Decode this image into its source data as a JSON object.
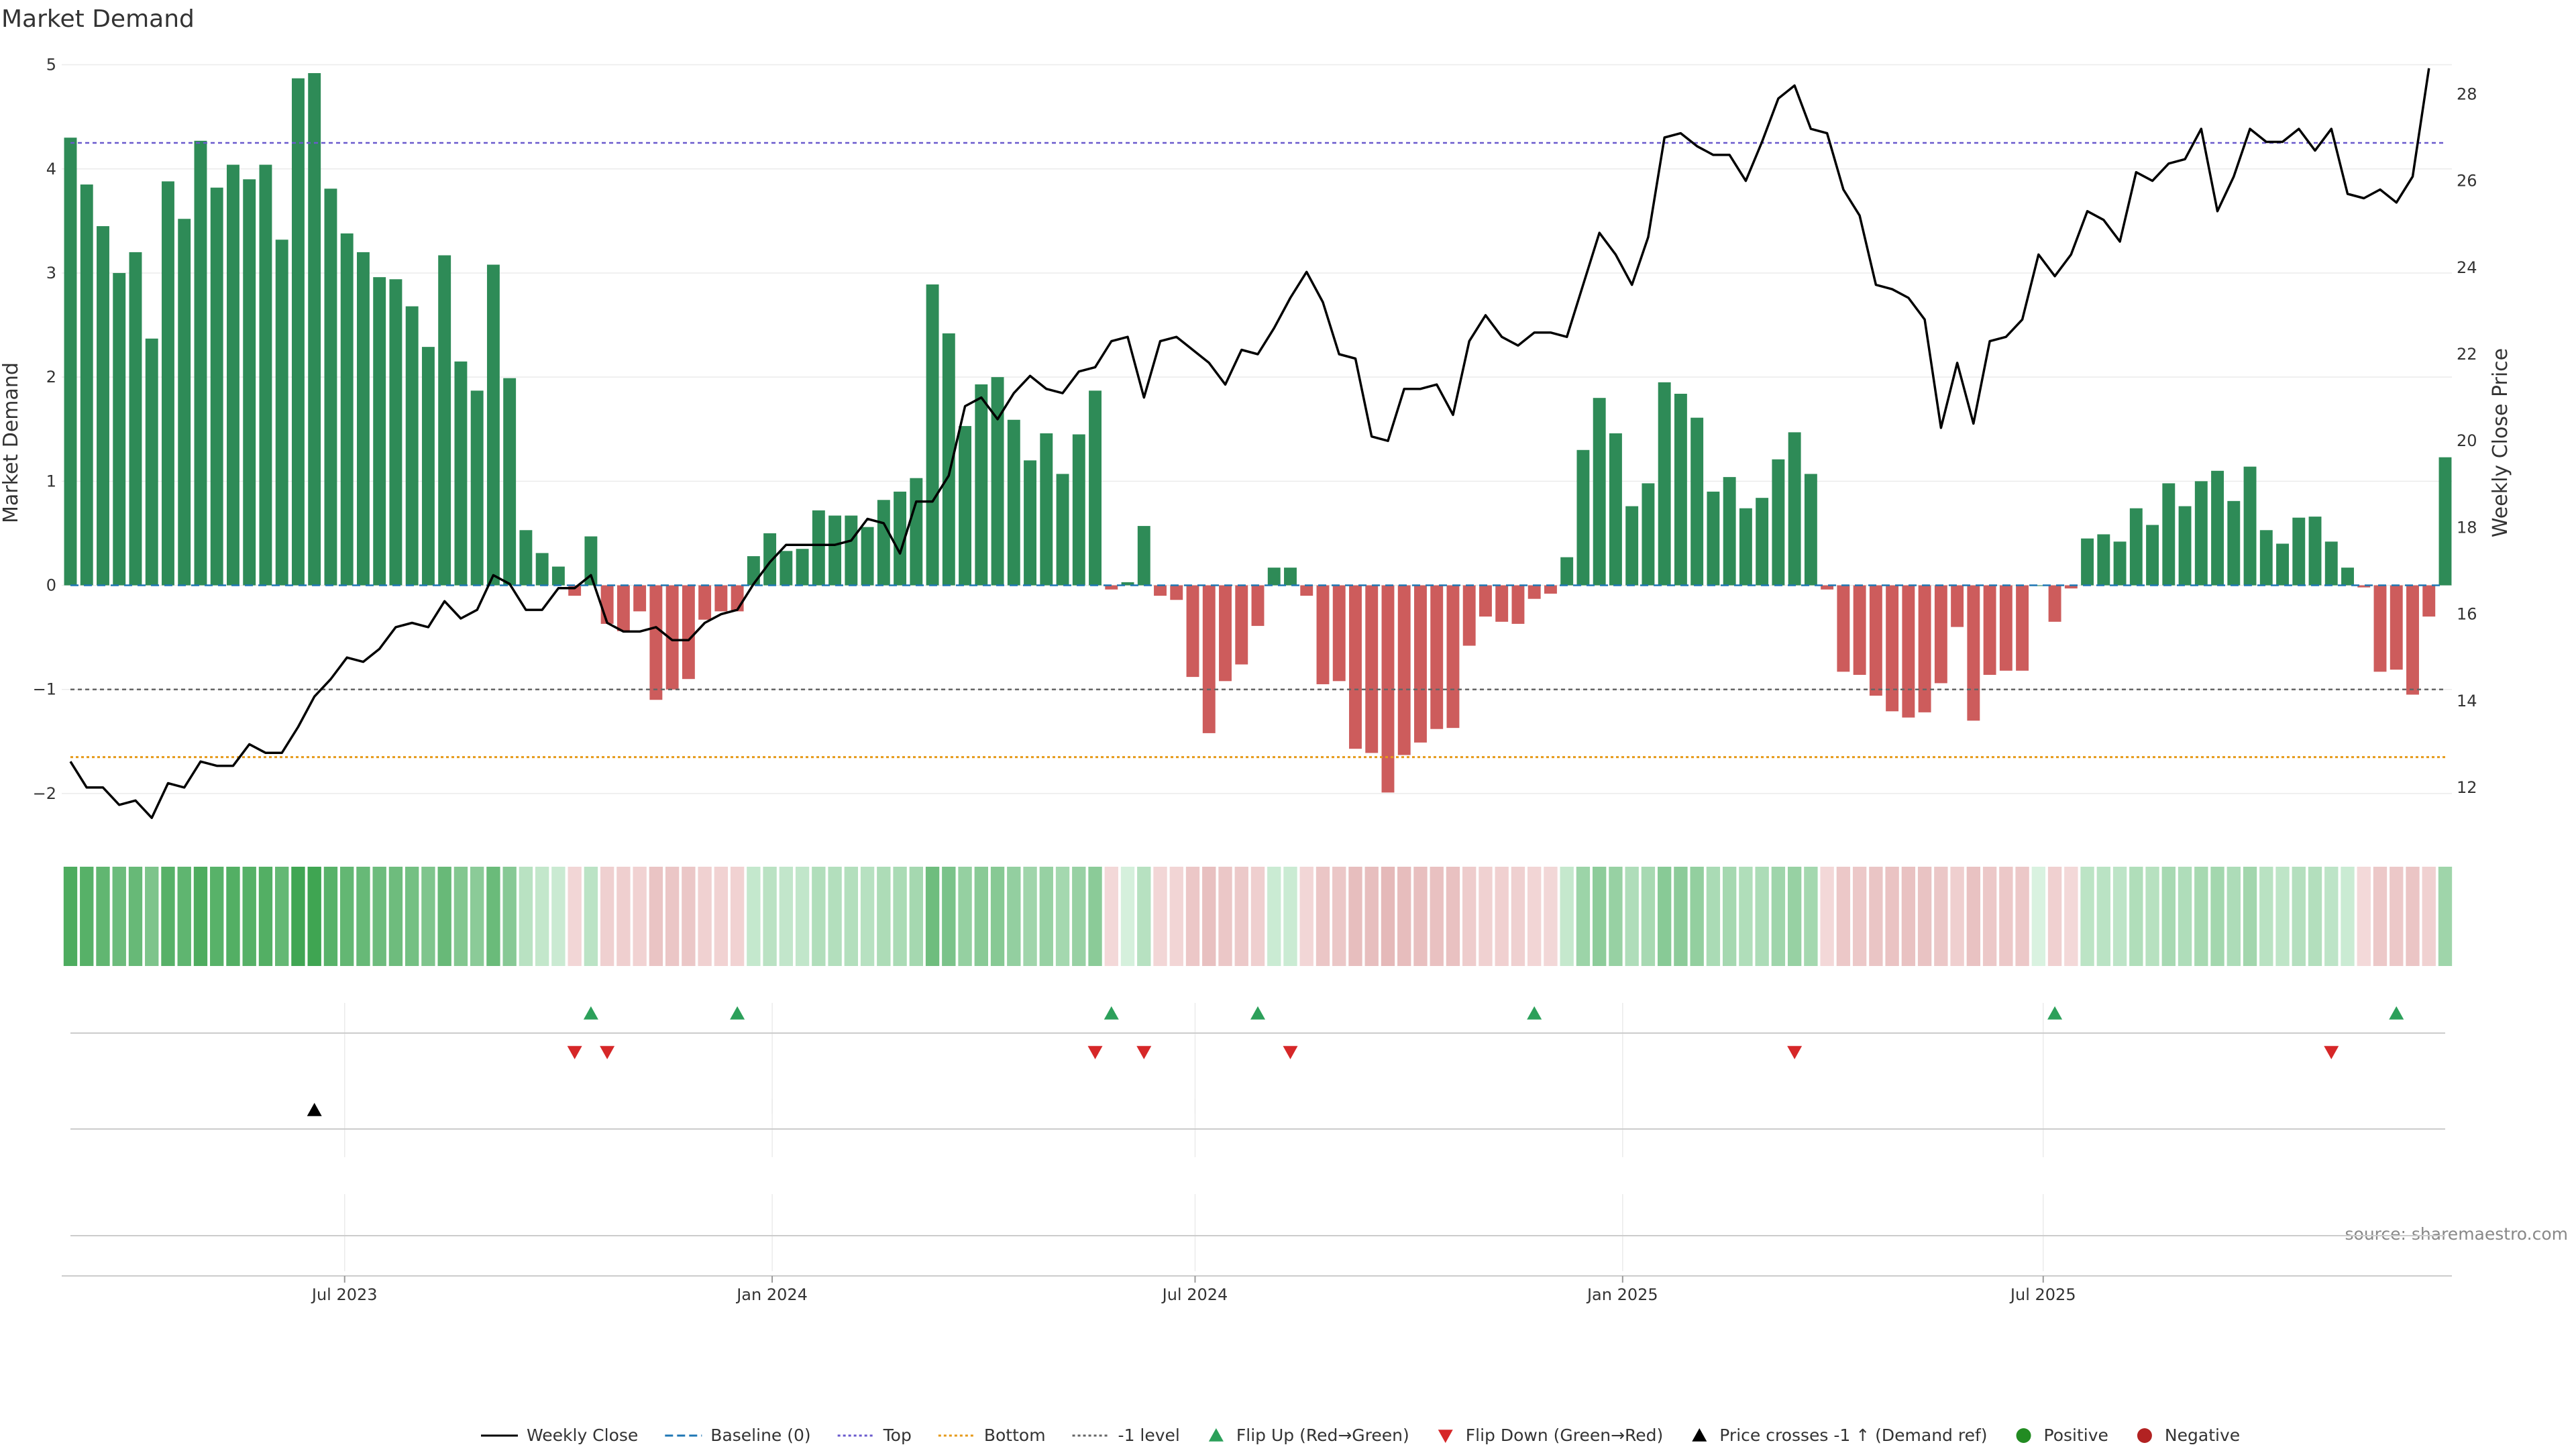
{
  "chart_data": {
    "type": "bar",
    "title": "Market Demand",
    "ylabel_left": "Market Demand",
    "ylabel_right": "Weekly Close Price",
    "source": "source: sharemaestro.com",
    "left_axis": {
      "ylim": [
        -2.4,
        5.3
      ],
      "ticks": [
        -2,
        -1,
        0,
        1,
        2,
        3,
        4,
        5
      ],
      "tick_labels": [
        "−2",
        "−1",
        "0",
        "1",
        "2",
        "3",
        "4",
        "5"
      ]
    },
    "right_axis": {
      "ylim": [
        10.9,
        29.4
      ],
      "ticks": [
        12,
        14,
        16,
        18,
        20,
        22,
        24,
        26,
        28
      ],
      "tick_labels": [
        "12",
        "14",
        "16",
        "18",
        "20",
        "22",
        "24",
        "26",
        "28"
      ]
    },
    "x_axis": {
      "start_date": "2023-03-05",
      "interval_days": 7,
      "ticks": [
        {
          "date": "2023-07-01",
          "label": "Jul 2023"
        },
        {
          "date": "2024-01-01",
          "label": "Jan 2024"
        },
        {
          "date": "2024-07-01",
          "label": "Jul 2024"
        },
        {
          "date": "2025-01-01",
          "label": "Jan 2025"
        },
        {
          "date": "2025-07-01",
          "label": "Jul 2025"
        }
      ]
    },
    "reference_lines": {
      "top": 4.25,
      "bottom": -1.65,
      "minus_one": -1,
      "baseline": 0
    },
    "colors": {
      "positive": "#2e8b57",
      "negative": "#cd5c5c",
      "price": "#000000",
      "top": "#6a5acd",
      "bottom": "#e69a1a",
      "minus_one": "#666666",
      "baseline": "#1f77b4",
      "flip_up": "#2ca05a",
      "flip_down": "#d62728"
    },
    "demand": [
      4.3,
      3.85,
      3.45,
      3.0,
      3.2,
      2.37,
      3.88,
      3.52,
      4.27,
      3.82,
      4.04,
      3.9,
      4.04,
      3.32,
      4.87,
      4.92,
      3.81,
      3.38,
      3.2,
      2.96,
      2.94,
      2.68,
      2.29,
      3.17,
      2.15,
      1.87,
      3.08,
      1.99,
      0.53,
      0.31,
      0.18,
      -0.1,
      0.47,
      -0.37,
      -0.44,
      -0.25,
      -1.1,
      -1.0,
      -0.9,
      -0.33,
      -0.25,
      -0.25,
      0.28,
      0.5,
      0.33,
      0.35,
      0.72,
      0.67,
      0.67,
      0.56,
      0.82,
      0.9,
      1.03,
      2.89,
      2.42,
      1.53,
      1.93,
      2.0,
      1.59,
      1.2,
      1.46,
      1.07,
      1.45,
      1.87,
      -0.04,
      0.03,
      0.57,
      -0.1,
      -0.14,
      -0.88,
      -1.42,
      -0.92,
      -0.76,
      -0.39,
      0.17,
      0.17,
      -0.1,
      -0.95,
      -0.92,
      -1.57,
      -1.61,
      -1.99,
      -1.63,
      -1.51,
      -1.38,
      -1.37,
      -0.58,
      -0.3,
      -0.35,
      -0.37,
      -0.13,
      -0.08,
      0.27,
      1.3,
      1.8,
      1.46,
      0.76,
      0.98,
      1.95,
      1.84,
      1.61,
      0.9,
      1.04,
      0.74,
      0.84,
      1.21,
      1.47,
      1.07,
      -0.04,
      -0.83,
      -0.86,
      -1.06,
      -1.21,
      -1.27,
      -1.22,
      -0.94,
      -0.4,
      -1.3,
      -0.86,
      -0.82,
      -0.82,
      0.0,
      -0.35,
      -0.03,
      0.45,
      0.49,
      0.42,
      0.74,
      0.58,
      0.98,
      0.76,
      1.0,
      1.1,
      0.81,
      1.14,
      0.53,
      0.4,
      0.65,
      0.66,
      0.42,
      0.17,
      -0.02,
      -0.83,
      -0.81,
      -1.05,
      -0.3,
      1.23
    ],
    "price": [
      12.6,
      12.0,
      12.0,
      11.6,
      11.7,
      11.3,
      12.1,
      12.0,
      12.6,
      12.5,
      12.5,
      13.0,
      12.8,
      12.8,
      13.4,
      14.1,
      14.5,
      15.0,
      14.9,
      15.2,
      15.7,
      15.8,
      15.7,
      16.3,
      15.9,
      16.1,
      16.9,
      16.7,
      16.1,
      16.1,
      16.6,
      16.6,
      16.9,
      15.8,
      15.6,
      15.6,
      15.7,
      15.4,
      15.4,
      15.8,
      16.0,
      16.1,
      16.7,
      17.2,
      17.6,
      17.6,
      17.6,
      17.6,
      17.7,
      18.2,
      18.1,
      17.4,
      18.6,
      18.6,
      19.2,
      20.8,
      21.0,
      20.5,
      21.1,
      21.5,
      21.2,
      21.1,
      21.6,
      21.7,
      22.3,
      22.4,
      21.0,
      22.3,
      22.4,
      22.1,
      21.8,
      21.3,
      22.1,
      22.0,
      22.6,
      23.3,
      23.9,
      23.2,
      22.0,
      21.9,
      20.1,
      20.0,
      21.2,
      21.2,
      21.3,
      20.6,
      22.3,
      22.9,
      22.4,
      22.2,
      22.5,
      22.5,
      22.4,
      23.6,
      24.8,
      24.3,
      23.6,
      24.7,
      27.0,
      27.1,
      26.8,
      26.6,
      26.6,
      26.0,
      26.9,
      27.9,
      28.2,
      27.2,
      27.1,
      25.8,
      25.2,
      23.6,
      23.5,
      23.3,
      22.8,
      20.3,
      21.8,
      20.4,
      22.3,
      22.4,
      22.8,
      24.3,
      23.8,
      24.3,
      25.3,
      25.1,
      24.6,
      26.2,
      26.0,
      26.4,
      26.5,
      27.2,
      25.3,
      26.1,
      27.2,
      26.9,
      26.9,
      27.2,
      26.7,
      27.2,
      25.7,
      25.6,
      25.8,
      25.5,
      26.1,
      28.6
    ],
    "flip_up_idx": [
      32,
      41,
      64,
      73,
      90,
      122,
      143
    ],
    "flip_down_idx": [
      31,
      33,
      63,
      66,
      75,
      106,
      139
    ],
    "price_cross_idx": [
      15
    ],
    "legend": [
      {
        "label": "Weekly Close",
        "marker": "solid-line"
      },
      {
        "label": "Baseline (0)",
        "marker": "dash-line"
      },
      {
        "label": "Top",
        "marker": "dot-line"
      },
      {
        "label": "Bottom",
        "marker": "dot-line"
      },
      {
        "label": "-1 level",
        "marker": "dot-line"
      },
      {
        "label": "Flip Up (Red→Green)",
        "marker": "triangle-up"
      },
      {
        "label": "Flip Down (Green→Red)",
        "marker": "triangle-down"
      },
      {
        "label": "Price crosses -1 ↑ (Demand ref)",
        "marker": "triangle-up"
      },
      {
        "label": "Positive",
        "marker": "circle"
      },
      {
        "label": "Negative",
        "marker": "circle"
      }
    ]
  }
}
